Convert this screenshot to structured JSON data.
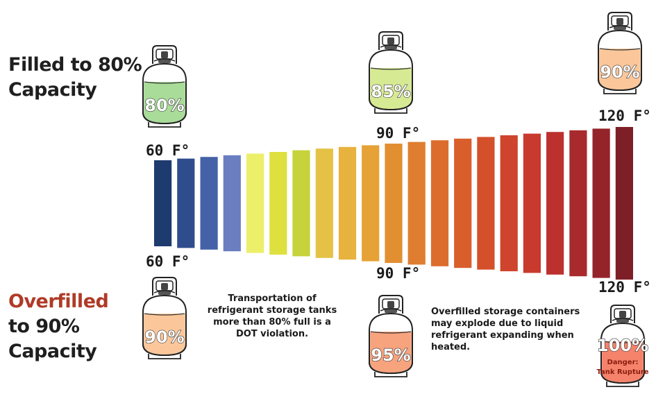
{
  "headings": {
    "top_line1": "Filled to 80%",
    "top_line2": "Capacity",
    "bottom_line1": "Overfilled",
    "bottom_line2": "to 90%",
    "bottom_line3": "Capacity"
  },
  "temps": {
    "t60": "60 F°",
    "t90": "90 F°",
    "t120": "120 F°"
  },
  "notes": {
    "dot": "Transportation of refrigerant storage tanks more than 80% full is a DOT violation.",
    "explode": "Overfilled storage containers may explode due to liquid refrigerant expanding when heated."
  },
  "tanks": {
    "top_80": {
      "label": "80%",
      "color": "#a8dc98"
    },
    "top_85": {
      "label": "85%",
      "color": "#d6ea94"
    },
    "top_90": {
      "label": "90%",
      "color": "#fbc79a"
    },
    "bot_90": {
      "label": "90%",
      "color": "#fbc79a"
    },
    "bot_95": {
      "label": "95%",
      "color": "#f7a37e"
    },
    "bot_100": {
      "label": "100%",
      "color": "#f5826a",
      "danger_line1": "Danger:",
      "danger_line2": "Tank Rupture"
    }
  },
  "gradient_colors": [
    "#1d3b6e",
    "#2f4d8c",
    "#4562a8",
    "#6a7ec0",
    "#ecef6a",
    "#dde03f",
    "#c6d33a",
    "#e5c245",
    "#e8b23e",
    "#e6a236",
    "#e28f32",
    "#df7d30",
    "#dc6c2e",
    "#d85f2c",
    "#d4502b",
    "#cf442c",
    "#c93a2e",
    "#bc312e",
    "#a92a2c",
    "#94242a",
    "#7e1f27"
  ]
}
